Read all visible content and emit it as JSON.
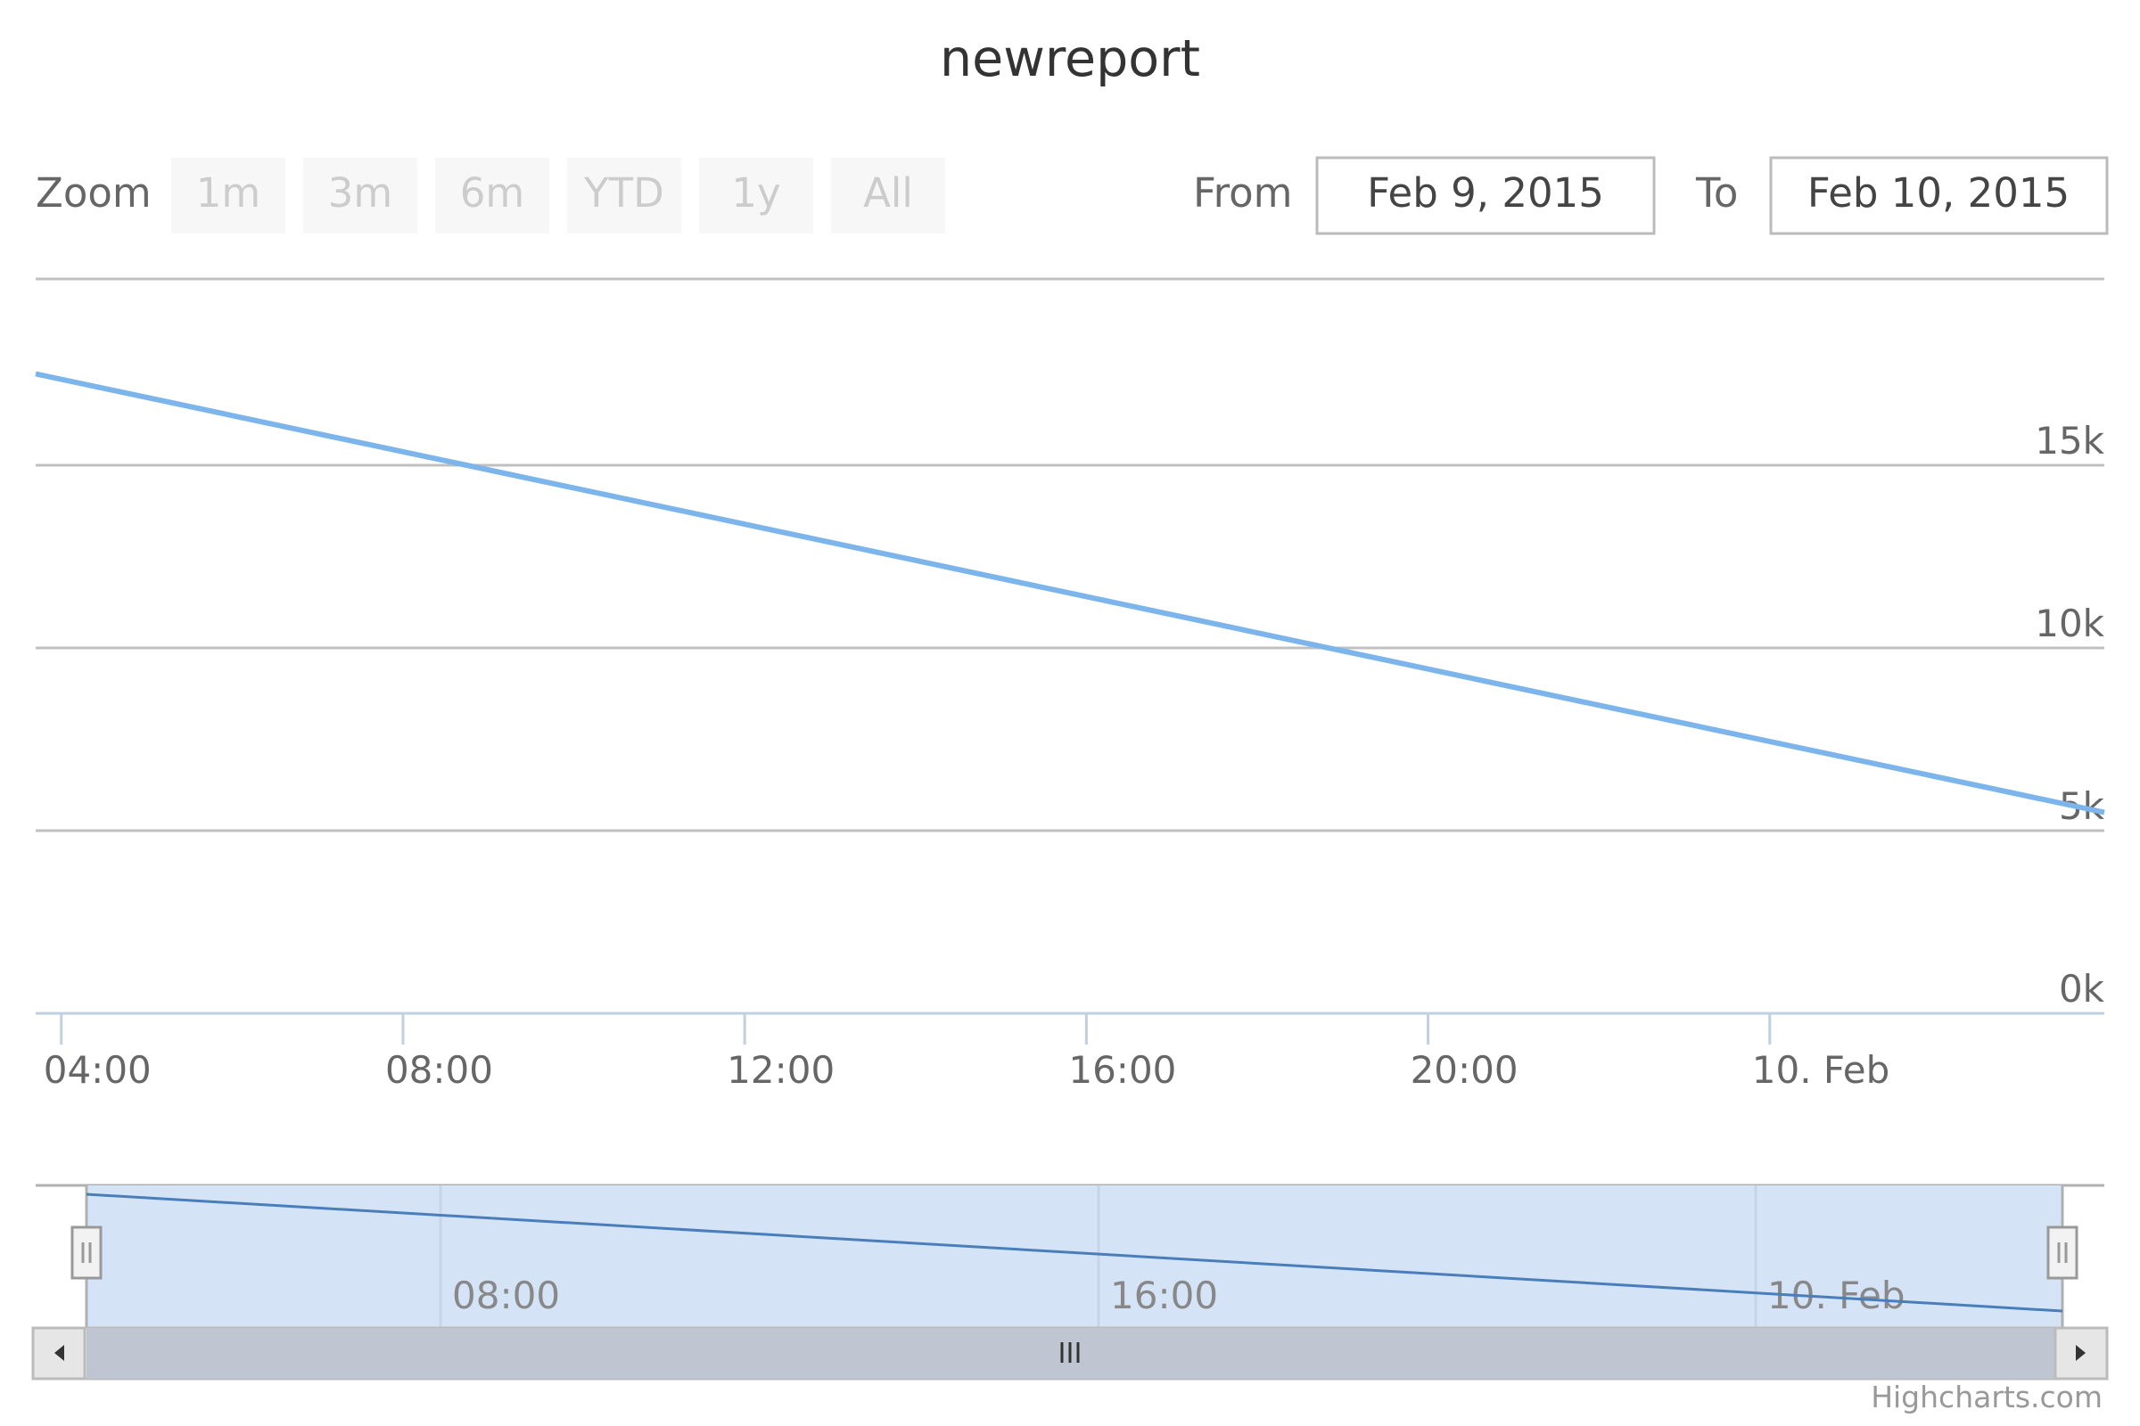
{
  "title": "newreport",
  "range_selector": {
    "zoom_label": "Zoom",
    "buttons": [
      "1m",
      "3m",
      "6m",
      "YTD",
      "1y",
      "All"
    ],
    "from_label": "From",
    "from_value": "Feb 9, 2015",
    "to_label": "To",
    "to_value": "Feb 10, 2015"
  },
  "credits": "Highcharts.com",
  "colors": {
    "series": "#7cb5ec",
    "navigator_series": "#4a7ebb",
    "navigator_mask": "#d4e3f5",
    "scrollbar": "#bfc6d1",
    "grid": "#c0c0c0",
    "axis": "#c0d0e0",
    "text": "#555555"
  },
  "chart_data": {
    "type": "line",
    "x_axis": {
      "type": "datetime",
      "tick_labels": [
        "04:00",
        "08:00",
        "12:00",
        "16:00",
        "20:00",
        "10. Feb"
      ],
      "range": [
        "2015-02-09T03:42",
        "2015-02-10T03:55"
      ]
    },
    "y_axis": {
      "tick_labels": [
        "0k",
        "5k",
        "10k",
        "15k"
      ],
      "ticks": [
        0,
        5000,
        10000,
        15000
      ],
      "ylim": [
        0,
        20000
      ],
      "position": "right",
      "grid": true
    },
    "series": [
      {
        "x": [
          "2015-02-09T03:42",
          "2015-02-10T03:55"
        ],
        "y": [
          17500,
          5500
        ]
      }
    ],
    "navigator": {
      "tick_labels": [
        "08:00",
        "16:00",
        "10. Feb"
      ],
      "selection": "full range"
    }
  }
}
